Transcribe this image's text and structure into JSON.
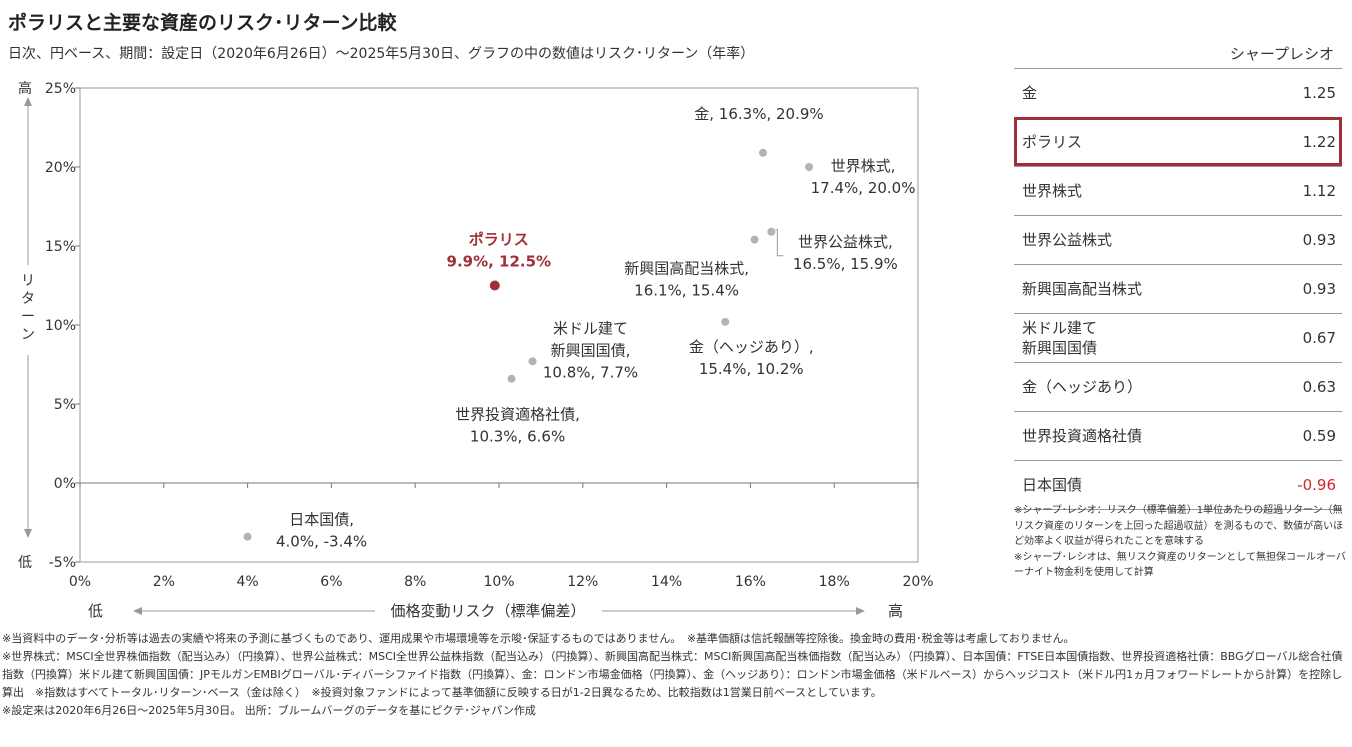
{
  "title": "ポラリスと主要な資産のリスク･リターン比較",
  "subtitle": "日次、円ベース、期間：設定日（2020年6月26日）～2025年5月30日、グラフの中の数値はリスク･リターン（年率）",
  "chart_data": {
    "type": "scatter",
    "xlabel": "価格変動リスク（標準偏差）",
    "ylabel": "リターン",
    "x_low": "低",
    "x_high": "高",
    "y_high": "高",
    "y_low": "低",
    "xlim": [
      0,
      20
    ],
    "ylim": [
      -5,
      25
    ],
    "xticks": [
      0,
      2,
      4,
      6,
      8,
      10,
      12,
      14,
      16,
      18,
      20
    ],
    "yticks": [
      -5,
      0,
      5,
      10,
      15,
      20,
      25
    ],
    "xtick_labels": [
      "0%",
      "2%",
      "4%",
      "6%",
      "8%",
      "10%",
      "12%",
      "14%",
      "16%",
      "18%",
      "20%"
    ],
    "ytick_labels": [
      "-5%",
      "0%",
      "5%",
      "10%",
      "15%",
      "20%",
      "25%"
    ],
    "grid": false,
    "points": [
      {
        "name": "金",
        "x": 16.3,
        "y": 20.9,
        "label": [
          "金, 16.3%, 20.9%"
        ],
        "highlight": false
      },
      {
        "name": "世界株式",
        "x": 17.4,
        "y": 20.0,
        "label": [
          "世界株式,",
          "17.4%, 20.0%"
        ],
        "highlight": false
      },
      {
        "name": "世界公益株式",
        "x": 16.5,
        "y": 15.9,
        "label": [
          "世界公益株式,",
          "16.5%, 15.9%"
        ],
        "highlight": false
      },
      {
        "name": "新興国高配当株式",
        "x": 16.1,
        "y": 15.4,
        "label": [
          "新興国高配当株式,",
          "16.1%, 15.4%"
        ],
        "highlight": false
      },
      {
        "name": "ポラリス",
        "x": 9.9,
        "y": 12.5,
        "label": [
          "ポラリス",
          "9.9%, 12.5%"
        ],
        "highlight": true
      },
      {
        "name": "金（ヘッジあり）",
        "x": 15.4,
        "y": 10.2,
        "label": [
          "金（ヘッジあり）,",
          "15.4%, 10.2%"
        ],
        "highlight": false
      },
      {
        "name": "米ドル建て新興国国債",
        "x": 10.8,
        "y": 7.7,
        "label": [
          "米ドル建て",
          "新興国国債,",
          "10.8%, 7.7%"
        ],
        "highlight": false
      },
      {
        "name": "世界投資適格社債",
        "x": 10.3,
        "y": 6.6,
        "label": [
          "世界投資適格社債,",
          "10.3%, 6.6%"
        ],
        "highlight": false
      },
      {
        "name": "日本国債",
        "x": 4.0,
        "y": -3.4,
        "label": [
          "日本国債,",
          "4.0%, -3.4%"
        ],
        "highlight": false
      }
    ]
  },
  "colors": {
    "highlight": "#a03038",
    "point": "#b3b3b3",
    "axis": "#999999",
    "negative": "#d0262c"
  },
  "sharpe": {
    "header": "シャープレシオ",
    "rows": [
      {
        "name": "金",
        "value": "1.25"
      },
      {
        "name": "ポラリス",
        "value": "1.22",
        "highlight": true
      },
      {
        "name": "世界株式",
        "value": "1.12"
      },
      {
        "name": "世界公益株式",
        "value": "0.93"
      },
      {
        "name": "新興国高配当株式",
        "value": "0.93"
      },
      {
        "name": "米ドル建て\n新興国国債",
        "value": "0.67"
      },
      {
        "name": "金（ヘッジあり）",
        "value": "0.63"
      },
      {
        "name": "世界投資適格社債",
        "value": "0.59"
      },
      {
        "name": "日本国債",
        "value": "-0.96",
        "negative": true
      }
    ],
    "note1": "※シャープ･レシオ：リスク（標準偏差）1単位あたりの超過リターン（無リスク資産のリターンを上回った超過収益）を測るもので、数値が高いほど効率よく収益が得られたことを意味する",
    "note2": "※シャープ･レシオは、無リスク資産のリターンとして無担保コールオーバーナイト物金利を使用して計算"
  },
  "footnotes": {
    "line1": "※当資料中のデータ･分析等は過去の実績や将来の予測に基づくものであり、運用成果や市場環境等を示唆･保証するものではありません。　※基準価額は信託報酬等控除後。換金時の費用･税金等は考慮しておりません。",
    "line2": "※世界株式：MSCI全世界株価指数（配当込み）（円換算）、世界公益株式：MSCI全世界公益株指数（配当込み）（円換算）、新興国高配当株式：MSCI新興国高配当株価指数（配当込み）（円換算）、日本国債：FTSE日本国債指数、世界投資適格社債：BBGグローバル総合社債指数（円換算）米ドル建て新興国国債：JPモルガンEMBIグローバル･ディバーシファイド指数（円換算）、金：ロンドン市場金価格（円換算）、金（ヘッジあり）：ロンドン市場金価格（米ドルベース）からヘッジコスト（米ドル円1ヵ月フォワードレートから計算）を控除し算出　※指数はすべてトータル･リターン･ベース（金は除く）　※投資対象ファンドによって基準価額に反映する日が1-2日異なるため、比較指数は1営業日前ベースとしています。",
    "line3": "※設定来は2020年6月26日～2025年5月30日。 出所：ブルームバーグのデータを基にピクテ･ジャパン作成"
  }
}
